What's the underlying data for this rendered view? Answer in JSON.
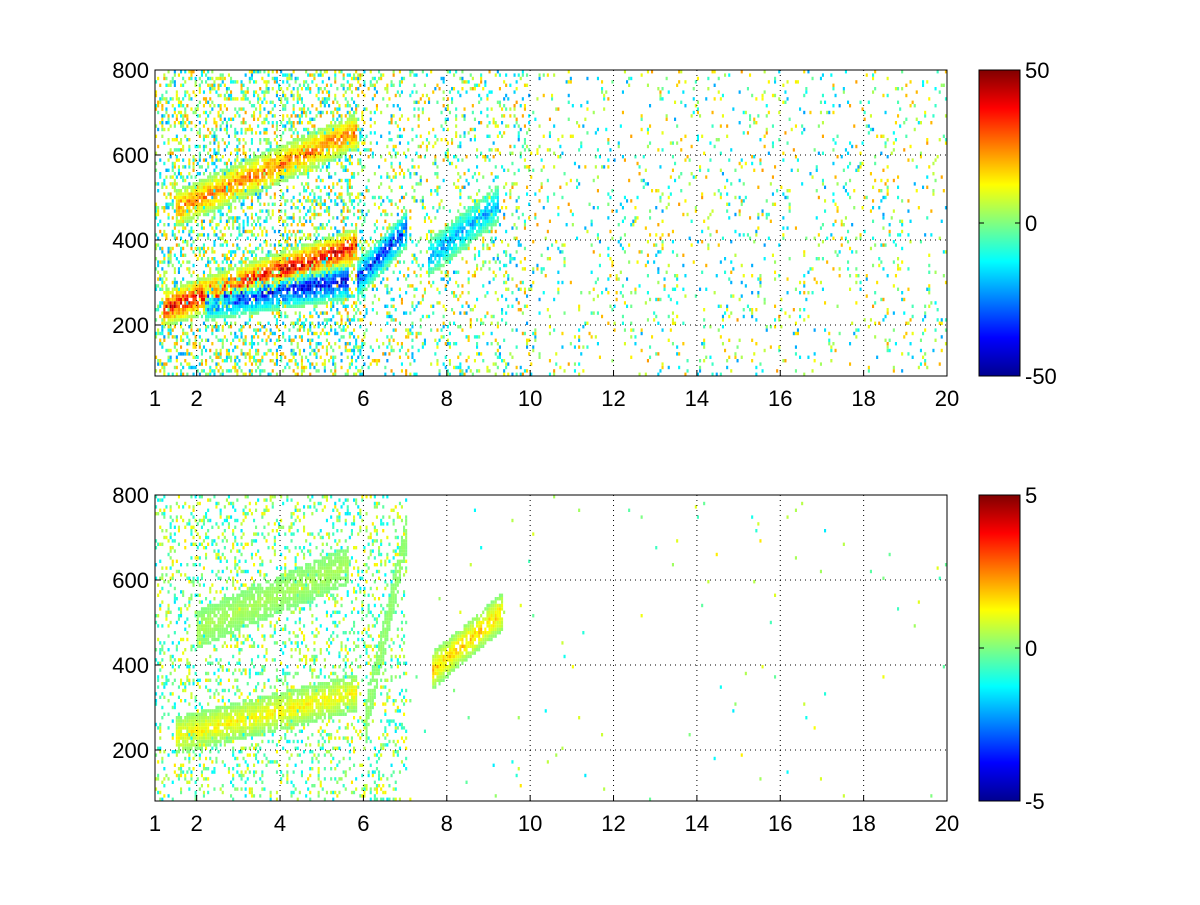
{
  "chart_data": [
    {
      "type": "heatmap",
      "title": "",
      "xlabel": "",
      "ylabel": "",
      "xlim": [
        1,
        20
      ],
      "ylim": [
        80,
        800
      ],
      "x_ticks": [
        1,
        2,
        4,
        6,
        8,
        10,
        12,
        14,
        16,
        18,
        20
      ],
      "y_ticks": [
        200,
        400,
        600,
        800
      ],
      "x_tick_labels": [
        "1",
        "2",
        "4",
        "6",
        "8",
        "10",
        "12",
        "14",
        "16",
        "18",
        "20"
      ],
      "y_tick_labels": [
        "200",
        "400",
        "600",
        "800"
      ],
      "grid": true,
      "colormap": "jet",
      "clim": [
        -50,
        50
      ],
      "colorbar_ticks": [
        50,
        0,
        -50
      ],
      "colorbar_tick_labels": [
        "50",
        "0",
        "-50"
      ],
      "features": [
        {
          "x_range": [
            1.2,
            5.8
          ],
          "y_start": 235,
          "y_end": 380,
          "value": 45
        },
        {
          "x_range": [
            2.2,
            5.6
          ],
          "y_start": 250,
          "y_end": 300,
          "value": -45
        },
        {
          "x_range": [
            1.5,
            5.8
          ],
          "y_start": 470,
          "y_end": 650,
          "value": 30
        },
        {
          "x_range": [
            5.8,
            7.0
          ],
          "y_start": 300,
          "y_end": 420,
          "value": -40
        },
        {
          "x_range": [
            7.5,
            9.2
          ],
          "y_start": 350,
          "y_end": 480,
          "value": -25
        }
      ]
    },
    {
      "type": "heatmap",
      "title": "",
      "xlabel": "",
      "ylabel": "",
      "xlim": [
        1,
        20
      ],
      "ylim": [
        80,
        800
      ],
      "x_ticks": [
        1,
        2,
        4,
        6,
        8,
        10,
        12,
        14,
        16,
        18,
        20
      ],
      "y_ticks": [
        200,
        400,
        600,
        800
      ],
      "x_tick_labels": [
        "1",
        "2",
        "4",
        "6",
        "8",
        "10",
        "12",
        "14",
        "16",
        "18",
        "20"
      ],
      "y_tick_labels": [
        "200",
        "400",
        "600",
        "800"
      ],
      "grid": true,
      "colormap": "jet",
      "clim": [
        -5,
        5
      ],
      "colorbar_ticks": [
        5,
        0,
        -5
      ],
      "colorbar_tick_labels": [
        "5",
        "0",
        "-5"
      ],
      "features": [
        {
          "x_range": [
            1.5,
            5.8
          ],
          "y_start": 230,
          "y_end": 330,
          "value": 1.5
        },
        {
          "x_range": [
            2.0,
            5.6
          ],
          "y_start": 480,
          "y_end": 630,
          "value": 0.5
        },
        {
          "x_range": [
            7.6,
            9.3
          ],
          "y_start": 380,
          "y_end": 520,
          "value": 2.0
        },
        {
          "x_range": [
            6.0,
            7.0
          ],
          "y_start": 250,
          "y_end": 700,
          "value": 0.3
        }
      ]
    }
  ],
  "colors": {
    "jet": [
      "#00008F",
      "#0000FF",
      "#0080FF",
      "#00FFFF",
      "#80FF80",
      "#FFFF00",
      "#FF8000",
      "#FF0000",
      "#800000"
    ]
  }
}
